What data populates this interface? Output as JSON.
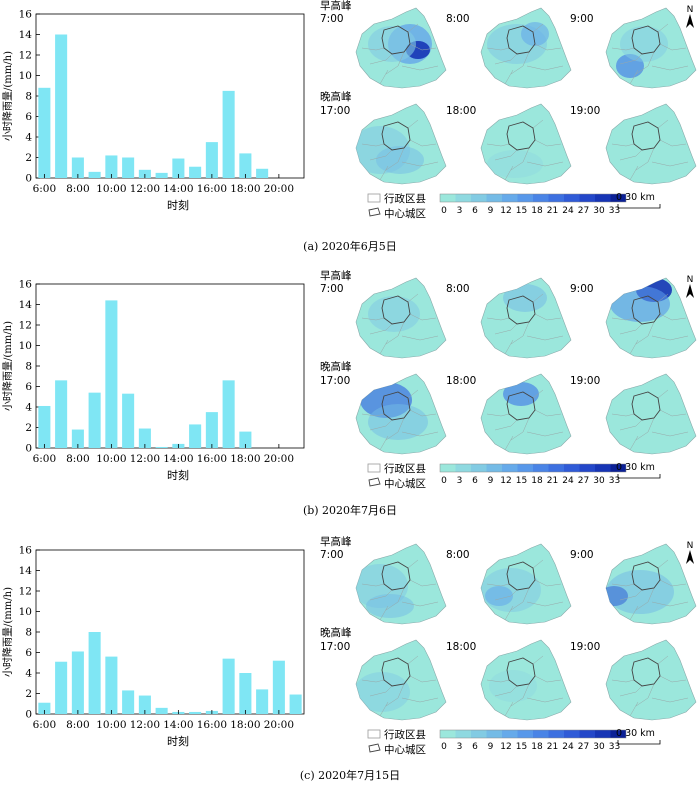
{
  "panels": [
    {
      "caption": "(a) 2020年6月5日",
      "morning_label": "早高峰",
      "evening_label": "晚高峰",
      "times_top": [
        "7:00",
        "8:00",
        "9:00"
      ],
      "times_bottom": [
        "17:00",
        "18:00",
        "19:00"
      ]
    },
    {
      "caption": "(b) 2020年7月6日",
      "morning_label": "早高峰",
      "evening_label": "晚高峰",
      "times_top": [
        "7:00",
        "8:00",
        "9:00"
      ],
      "times_bottom": [
        "17:00",
        "18:00",
        "19:00"
      ]
    },
    {
      "caption": "(c) 2020年7月15日",
      "morning_label": "早高峰",
      "evening_label": "晚高峰",
      "times_top": [
        "7:00",
        "8:00",
        "9:00"
      ],
      "times_bottom": [
        "17:00",
        "18:00",
        "19:00"
      ]
    }
  ],
  "legend": {
    "district_label": "行政区县",
    "center_label": "中心城区",
    "ticks": [
      "0",
      "3",
      "6",
      "9",
      "12",
      "15",
      "18",
      "21",
      "24",
      "27",
      "30",
      "33"
    ],
    "colors": [
      "#9be7dc",
      "#8fd9e0",
      "#82cbe3",
      "#74bbe6",
      "#66aaea",
      "#5898ea",
      "#4a84e6",
      "#3d70e0",
      "#305bd7",
      "#2447c9",
      "#1735b5",
      "#0b2096"
    ],
    "scale_label": "0     30 km",
    "north": "N"
  },
  "chart_data": [
    {
      "type": "bar",
      "categories": [
        "6:00",
        "7:00",
        "8:00",
        "9:00",
        "10:00",
        "11:00",
        "12:00",
        "13:00",
        "14:00",
        "15:00",
        "16:00",
        "17:00",
        "18:00",
        "19:00",
        "20:00",
        "21:00"
      ],
      "values": [
        8.8,
        14.0,
        2.0,
        0.6,
        2.2,
        2.0,
        0.8,
        0.5,
        1.9,
        1.1,
        3.5,
        8.5,
        2.4,
        0.9,
        0.0,
        0.0
      ],
      "xticks": [
        "6:00",
        "8:00",
        "10:00",
        "12:00",
        "14:00",
        "16:00",
        "18:00",
        "20:00"
      ],
      "yticks": [
        "0",
        "2",
        "4",
        "6",
        "8",
        "10",
        "12",
        "14",
        "16"
      ],
      "xlabel": "时刻",
      "ylabel": "小时降雨量/(mm/h)",
      "ylim": [
        0,
        16
      ],
      "bar_color": "#7fe6f4"
    },
    {
      "type": "bar",
      "categories": [
        "6:00",
        "7:00",
        "8:00",
        "9:00",
        "10:00",
        "11:00",
        "12:00",
        "13:00",
        "14:00",
        "15:00",
        "16:00",
        "17:00",
        "18:00",
        "19:00",
        "20:00",
        "21:00"
      ],
      "values": [
        4.1,
        6.6,
        1.8,
        5.4,
        14.4,
        5.3,
        1.9,
        0.1,
        0.4,
        2.3,
        3.5,
        6.6,
        1.6,
        0.0,
        0.0,
        0.0
      ],
      "xticks": [
        "6:00",
        "8:00",
        "10:00",
        "12:00",
        "14:00",
        "16:00",
        "18:00",
        "20:00"
      ],
      "yticks": [
        "0",
        "2",
        "4",
        "6",
        "8",
        "10",
        "12",
        "14",
        "16"
      ],
      "xlabel": "时刻",
      "ylabel": "小时降雨量/(mm/h)",
      "ylim": [
        0,
        16
      ],
      "bar_color": "#7fe6f4"
    },
    {
      "type": "bar",
      "categories": [
        "6:00",
        "7:00",
        "8:00",
        "9:00",
        "10:00",
        "11:00",
        "12:00",
        "13:00",
        "14:00",
        "15:00",
        "16:00",
        "17:00",
        "18:00",
        "19:00",
        "20:00",
        "21:00"
      ],
      "values": [
        1.1,
        5.1,
        6.1,
        8.0,
        5.6,
        2.3,
        1.8,
        0.6,
        0.2,
        0.2,
        0.3,
        5.4,
        4.0,
        2.4,
        5.2,
        1.9
      ],
      "xticks": [
        "6:00",
        "8:00",
        "10:00",
        "12:00",
        "14:00",
        "16:00",
        "18:00",
        "20:00"
      ],
      "yticks": [
        "0",
        "2",
        "4",
        "6",
        "8",
        "10",
        "12",
        "14",
        "16"
      ],
      "xlabel": "时刻",
      "ylabel": "小时降雨量/(mm/h)",
      "ylim": [
        0,
        16
      ],
      "bar_color": "#7fe6f4"
    }
  ]
}
